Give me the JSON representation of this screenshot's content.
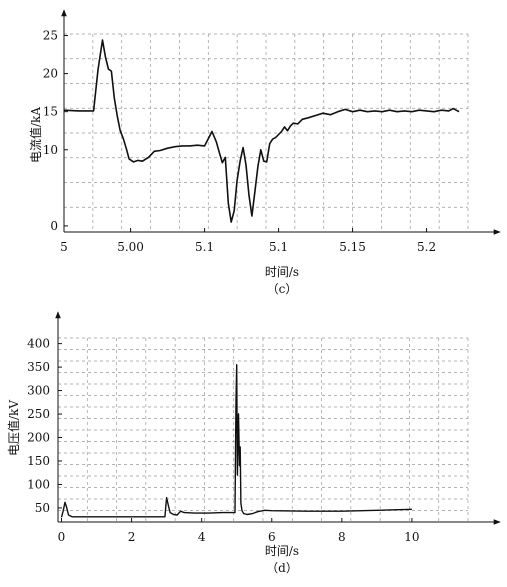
{
  "chart_data": [
    {
      "type": "line",
      "caption": "（c）",
      "xlabel": "时间/s",
      "ylabel": "电流值/kA",
      "xlim": [
        4.955,
        5.228
      ],
      "ylim": [
        -0.8,
        25.2
      ],
      "xticks": [
        {
          "value": 4.955,
          "label": "5"
        },
        {
          "value": 5.0,
          "label": "5.00"
        },
        {
          "value": 5.05,
          "label": "5.1"
        },
        {
          "value": 5.1,
          "label": "5.1"
        },
        {
          "value": 5.15,
          "label": "5.15"
        },
        {
          "value": 5.2,
          "label": "5.2"
        }
      ],
      "yticks": [
        {
          "value": 0,
          "label": "0"
        },
        {
          "value": 10,
          "label": "10"
        },
        {
          "value": 15,
          "label": "15"
        },
        {
          "value": 20,
          "label": "20"
        },
        {
          "value": 25,
          "label": "25"
        }
      ],
      "grid": true,
      "series": [
        {
          "color": "#111111",
          "x": [
            4.955,
            4.965,
            4.975,
            4.978,
            4.981,
            4.983,
            4.985,
            4.987,
            4.989,
            4.991,
            4.993,
            4.995,
            4.997,
            4.999,
            5.002,
            5.005,
            5.008,
            5.012,
            5.016,
            5.02,
            5.025,
            5.03,
            5.035,
            5.04,
            5.045,
            5.05,
            5.055,
            5.058,
            5.06,
            5.062,
            5.064,
            5.066,
            5.068,
            5.07,
            5.072,
            5.074,
            5.076,
            5.078,
            5.08,
            5.082,
            5.084,
            5.086,
            5.088,
            5.09,
            5.092,
            5.094,
            5.096,
            5.098,
            5.1,
            5.102,
            5.104,
            5.106,
            5.108,
            5.11,
            5.113,
            5.116,
            5.12,
            5.125,
            5.13,
            5.135,
            5.14,
            5.145,
            5.15,
            5.155,
            5.16,
            5.165,
            5.17,
            5.175,
            5.18,
            5.185,
            5.19,
            5.195,
            5.2,
            5.205,
            5.21,
            5.215,
            5.218,
            5.222
          ],
          "y": [
            15.2,
            15.1,
            15.1,
            20.5,
            24.4,
            22.2,
            20.6,
            20.3,
            16.8,
            14.4,
            12.5,
            11.5,
            10.2,
            8.8,
            8.4,
            8.6,
            8.5,
            9.0,
            9.8,
            9.9,
            10.2,
            10.4,
            10.5,
            10.5,
            10.6,
            10.5,
            12.4,
            11.0,
            9.6,
            8.3,
            9.0,
            3.0,
            0.5,
            2.0,
            6.0,
            8.5,
            10.3,
            8.0,
            4.0,
            1.3,
            4.5,
            7.8,
            10.0,
            8.5,
            8.4,
            10.8,
            11.4,
            11.6,
            12.0,
            12.4,
            13.0,
            12.5,
            13.1,
            13.5,
            13.4,
            14.0,
            14.2,
            14.5,
            14.8,
            14.6,
            15.0,
            15.3,
            15.0,
            15.2,
            15.0,
            15.1,
            15.0,
            15.2,
            15.0,
            15.1,
            15.0,
            15.2,
            15.1,
            15.0,
            15.2,
            15.1,
            15.4,
            15.0
          ]
        }
      ]
    },
    {
      "type": "line",
      "caption": "（d）",
      "xlabel": "时间/s",
      "ylabel": "电压值/kV",
      "xlim": [
        -0.1,
        11.6
      ],
      "ylim": [
        20,
        412
      ],
      "xticks": [
        {
          "value": 0,
          "label": "0"
        },
        {
          "value": 2,
          "label": "2"
        },
        {
          "value": 4,
          "label": "4"
        },
        {
          "value": 6,
          "label": "6"
        },
        {
          "value": 8,
          "label": "8"
        },
        {
          "value": 10,
          "label": "10"
        }
      ],
      "yticks": [
        {
          "value": 50,
          "label": "50"
        },
        {
          "value": 100,
          "label": "100"
        },
        {
          "value": 150,
          "label": "150"
        },
        {
          "value": 200,
          "label": "200"
        },
        {
          "value": 250,
          "label": "250"
        },
        {
          "value": 300,
          "label": "300"
        },
        {
          "value": 350,
          "label": "350"
        },
        {
          "value": 400,
          "label": "400"
        }
      ],
      "grid": true,
      "series": [
        {
          "color": "#111111",
          "x": [
            0.0,
            0.05,
            0.1,
            0.15,
            0.2,
            0.3,
            1.0,
            2.0,
            2.95,
            3.0,
            3.05,
            3.1,
            3.2,
            3.3,
            3.4,
            3.5,
            3.8,
            4.2,
            4.6,
            4.95,
            4.98,
            5.0,
            5.02,
            5.05,
            5.08,
            5.1,
            5.12,
            5.15,
            5.2,
            5.3,
            5.45,
            5.6,
            5.8,
            6.0,
            7.0,
            8.0,
            9.0,
            10.0
          ],
          "y": [
            30,
            45,
            62,
            50,
            35,
            31,
            31,
            31,
            31,
            72,
            55,
            40,
            36,
            35,
            43,
            40,
            39,
            39,
            40,
            40,
            280,
            355,
            120,
            250,
            140,
            180,
            60,
            44,
            38,
            36,
            38,
            42,
            45,
            44,
            43,
            43,
            45,
            47
          ]
        }
      ]
    }
  ]
}
